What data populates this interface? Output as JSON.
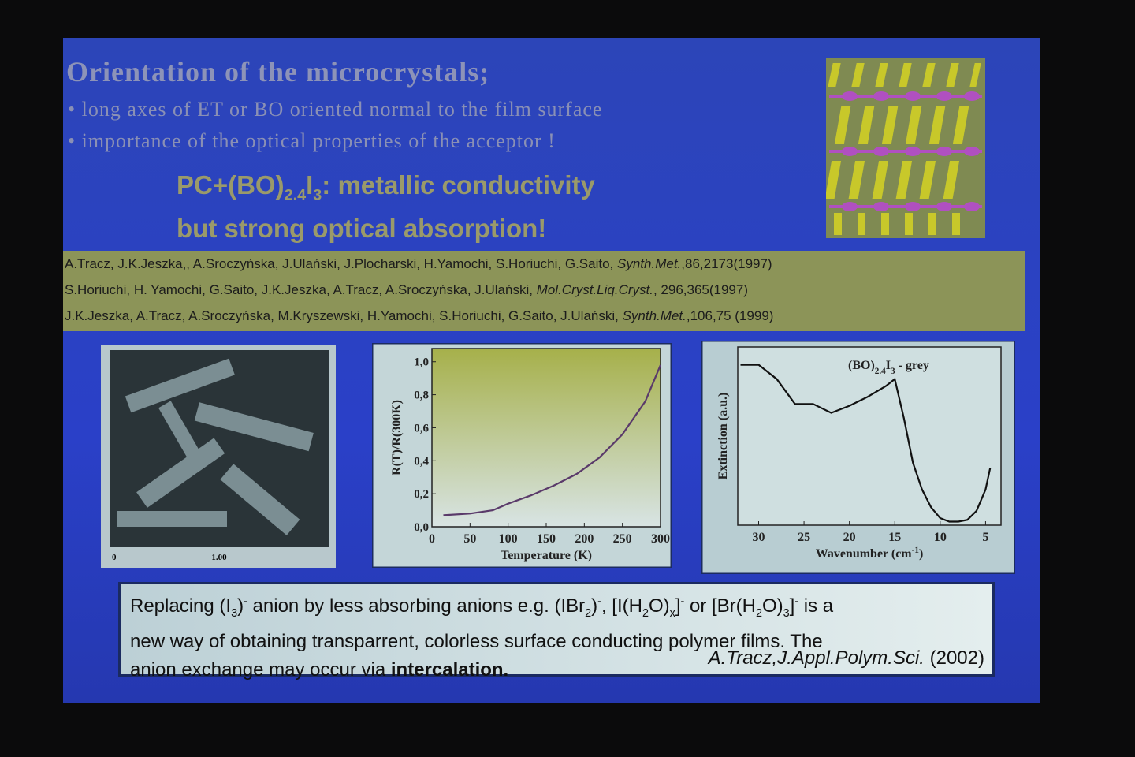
{
  "slide": {
    "title": "Orientation of the microcrystals;",
    "bullets": [
      "long axes of  ET or  BO oriented normal to the film surface",
      "importance of the optical properties of the acceptor !"
    ],
    "highlight": [
      [
        {
          "text": "PC+(BO)"
        },
        {
          "text": "2.4",
          "style": "sub"
        },
        {
          "text": "I"
        },
        {
          "text": "3",
          "style": "sub"
        },
        {
          "text": ": metallic conductivity"
        }
      ],
      [
        {
          "text": "but strong optical absorption!"
        }
      ]
    ],
    "references": [
      [
        {
          "text": "A.Tracz, J.K.Jeszka,, A.Sroczyńska, J.Ulański, J.Plocharski, H.Yamochi, S.Horiuchi, G.Saito, "
        },
        {
          "text": "Synth.Met.",
          "style": "italic"
        },
        {
          "text": ",86,2173(1997)"
        }
      ],
      [
        {
          "text": "S.Horiuchi, H. Yamochi, G.Saito, J.K.Jeszka, A.Tracz, A.Sroczyńska, J.Ulański, "
        },
        {
          "text": "Mol.Cryst.Liq.Cryst.",
          "style": "italic"
        },
        {
          "text": ", 296,365(1997)"
        }
      ],
      [
        {
          "text": "J.K.Jeszka, A.Tracz, A.Sroczyńska, M.Kryszewski, H.Yamochi, S.Horiuchi, G.Saito, J.Ulański, "
        },
        {
          "text": "Synth.Met.",
          "style": "italic"
        },
        {
          "text": ",106,75 (1999)"
        }
      ]
    ],
    "micrograph": {
      "scale_labels": [
        "0",
        "1.00"
      ]
    },
    "plots": [
      {
        "type": "line",
        "ylabel": "R(T)/R(300K)",
        "xlabel": "Temperature (K)",
        "x": [
          15,
          50,
          80,
          100,
          130,
          160,
          190,
          220,
          250,
          280,
          300
        ],
        "values": [
          0.07,
          0.08,
          0.1,
          0.14,
          0.19,
          0.25,
          0.32,
          0.42,
          0.56,
          0.76,
          0.98
        ],
        "xlim": [
          0,
          300
        ],
        "ylim": [
          0,
          1.08
        ],
        "xticks": [
          0,
          50,
          100,
          150,
          200,
          250,
          300
        ],
        "yticks": [
          {
            "value": 0,
            "label": "0,0"
          },
          {
            "value": 0.2,
            "label": "0,2"
          },
          {
            "value": 0.4,
            "label": "0,4"
          },
          {
            "value": 0.6,
            "label": "0,6"
          },
          {
            "value": 0.8,
            "label": "0,8"
          },
          {
            "value": 1.0,
            "label": "1,0"
          }
        ]
      },
      {
        "type": "line",
        "ylabel": "Extinction (a.u.)",
        "xlabel": [
          {
            "text": "Wavenumber (cm"
          },
          {
            "text": "-1",
            "style": "sup"
          },
          {
            "text": ")"
          }
        ],
        "annotation": [
          {
            "text": "(BO)"
          },
          {
            "text": "2.4",
            "style": "sub"
          },
          {
            "text": "I"
          },
          {
            "text": "3",
            "style": "sub"
          },
          {
            "text": " - grey"
          }
        ],
        "x": [
          32,
          30,
          28,
          26,
          25,
          24,
          22,
          20,
          18,
          16,
          15,
          14,
          13,
          12,
          11,
          10,
          9,
          8,
          7,
          6,
          5,
          4.5
        ],
        "values": [
          0.9,
          0.9,
          0.82,
          0.68,
          0.68,
          0.68,
          0.63,
          0.67,
          0.72,
          0.78,
          0.82,
          0.6,
          0.35,
          0.2,
          0.1,
          0.04,
          0.02,
          0.02,
          0.03,
          0.08,
          0.2,
          0.32
        ],
        "xlim": [
          32.3,
          3.3
        ],
        "ylim": [
          0,
          1
        ],
        "xticks": [
          30,
          25,
          20,
          15,
          10,
          5
        ]
      }
    ],
    "conclusion": [
      [
        {
          "text": "Replacing (I"
        },
        {
          "text": "3",
          "style": "sub"
        },
        {
          "text": ")",
          "style": ""
        },
        {
          "text": "-",
          "style": "sup"
        },
        {
          "text": " anion by less absorbing anions e.g. (IBr"
        },
        {
          "text": "2",
          "style": "sub"
        },
        {
          "text": ")"
        },
        {
          "text": "-",
          "style": "sup"
        },
        {
          "text": ", [I(H"
        },
        {
          "text": "2",
          "style": "sub"
        },
        {
          "text": "O)"
        },
        {
          "text": "x",
          "style": "sub"
        },
        {
          "text": "]"
        },
        {
          "text": "-",
          "style": "sup"
        },
        {
          "text": " or [Br(H"
        },
        {
          "text": "2",
          "style": "sub"
        },
        {
          "text": "O)"
        },
        {
          "text": "3",
          "style": "sub"
        },
        {
          "text": "]"
        },
        {
          "text": "-",
          "style": "sup"
        },
        {
          "text": " is a"
        }
      ],
      [
        {
          "text": "new way of obtaining transparrent, colorless surface conducting polymer films. The"
        }
      ],
      [
        {
          "text": "anion exchange may occur via "
        },
        {
          "text": "intercalation.",
          "style": "bold"
        }
      ]
    ],
    "citation": [
      {
        "text": "A.Tracz,J.Appl.Polym.Sci.",
        "style": "italic"
      },
      {
        "text": " (2002)"
      }
    ]
  }
}
